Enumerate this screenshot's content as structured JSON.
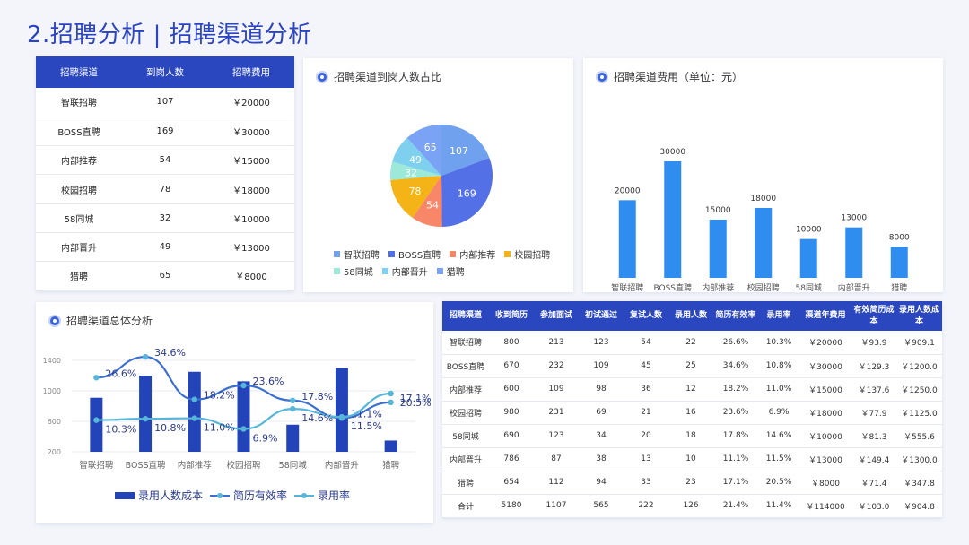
{
  "page_title": "2.招聘分析 | 招聘渠道分析",
  "colors": {
    "accent": "#2a47c0",
    "bar": "#2f8df0",
    "combo_bar": "#2344b8",
    "line1": "#3a6fd0",
    "line2": "#57b6d8"
  },
  "table1": {
    "headers": [
      "招聘渠道",
      "到岗人数",
      "招聘费用"
    ],
    "rows": [
      [
        "智联招聘",
        "107",
        "￥20000"
      ],
      [
        "BOSS直聘",
        "169",
        "￥30000"
      ],
      [
        "内部推荐",
        "54",
        "￥15000"
      ],
      [
        "校园招聘",
        "78",
        "￥18000"
      ],
      [
        "58同城",
        "32",
        "￥10000"
      ],
      [
        "内部晋升",
        "49",
        "￥13000"
      ],
      [
        "猎聘",
        "65",
        "￥8000"
      ]
    ]
  },
  "pie_card": {
    "title": "招聘渠道到岗人数占比"
  },
  "bar_card": {
    "title": "招聘渠道费用（单位：元）"
  },
  "combo_card": {
    "title": "招聘渠道总体分析"
  },
  "table2": {
    "headers": [
      "招聘渠道",
      "收到简历",
      "参加面试",
      "初试通过",
      "复试人数",
      "录用人数",
      "简历有效率",
      "录用率",
      "渠道年费用",
      "有效简历成本",
      "录用人数成本"
    ],
    "rows": [
      [
        "智联招聘",
        "800",
        "213",
        "123",
        "54",
        "22",
        "26.6%",
        "10.3%",
        "￥20000",
        "￥93.9",
        "￥909.1"
      ],
      [
        "BOSS直聘",
        "670",
        "232",
        "109",
        "45",
        "25",
        "34.6%",
        "10.8%",
        "￥30000",
        "￥129.3",
        "￥1200.0"
      ],
      [
        "内部推荐",
        "600",
        "109",
        "98",
        "36",
        "12",
        "18.2%",
        "11.0%",
        "￥15000",
        "￥137.6",
        "￥1250.0"
      ],
      [
        "校园招聘",
        "980",
        "231",
        "69",
        "21",
        "16",
        "23.6%",
        "6.9%",
        "￥18000",
        "￥77.9",
        "￥1125.0"
      ],
      [
        "58同城",
        "690",
        "123",
        "34",
        "20",
        "18",
        "17.8%",
        "14.6%",
        "￥10000",
        "￥81.3",
        "￥555.6"
      ],
      [
        "内部晋升",
        "786",
        "87",
        "38",
        "13",
        "10",
        "11.1%",
        "11.5%",
        "￥13000",
        "￥149.4",
        "￥1300.0"
      ],
      [
        "猎聘",
        "654",
        "112",
        "94",
        "33",
        "23",
        "17.1%",
        "20.5%",
        "￥8000",
        "￥71.4",
        "￥347.8"
      ],
      [
        "合计",
        "5180",
        "1107",
        "565",
        "222",
        "126",
        "21.4%",
        "11.4%",
        "￥114000",
        "￥103.0",
        "￥904.8"
      ]
    ]
  },
  "chart_data": [
    {
      "type": "pie",
      "title": "招聘渠道到岗人数占比",
      "categories": [
        "智联招聘",
        "BOSS直聘",
        "内部推荐",
        "校园招聘",
        "58同城",
        "内部晋升",
        "猎聘"
      ],
      "values": [
        107,
        169,
        54,
        78,
        32,
        49,
        65
      ],
      "colors": [
        "#6fa1ee",
        "#5470e6",
        "#f8876a",
        "#f4b316",
        "#9ce8d9",
        "#7fd0ef",
        "#7aa2f5"
      ],
      "legend": "bottom"
    },
    {
      "type": "bar",
      "title": "招聘渠道费用（单位：元）",
      "categories": [
        "智联招聘",
        "BOSS直聘",
        "内部推荐",
        "校园招聘",
        "58同城",
        "内部晋升",
        "猎聘"
      ],
      "values": [
        20000,
        30000,
        15000,
        18000,
        10000,
        13000,
        8000
      ],
      "ylim": [
        0,
        32000
      ],
      "grid": false
    },
    {
      "type": "bar",
      "title": "招聘渠道总体分析",
      "categories": [
        "智联招聘",
        "BOSS直聘",
        "内部推荐",
        "校园招聘",
        "58同城",
        "内部晋升",
        "猎聘"
      ],
      "y_ticks": [
        "1400",
        "1000",
        "600",
        "200"
      ],
      "ylim": [
        200,
        1400
      ],
      "series": [
        {
          "name": "录用人数成本",
          "kind": "bar",
          "values": [
            909.1,
            1200.0,
            1250.0,
            1125.0,
            555.6,
            1300.0,
            347.8
          ]
        },
        {
          "name": "简历有效率",
          "kind": "line",
          "values": [
            26.6,
            34.6,
            18.2,
            23.6,
            17.8,
            11.1,
            17.1
          ],
          "labels": [
            "26.6%",
            "34.6%",
            "18.2%",
            "23.6%",
            "17.8%",
            "11.1%",
            "17.1%"
          ]
        },
        {
          "name": "录用率",
          "kind": "line",
          "values": [
            10.3,
            10.8,
            11.0,
            6.9,
            14.6,
            11.5,
            20.5
          ],
          "labels": [
            "10.3%",
            "10.8%",
            "11.0%",
            "6.9%",
            "14.6%",
            "11.5%",
            "20.5%"
          ]
        }
      ],
      "legend": "bottom",
      "grid": true
    }
  ]
}
